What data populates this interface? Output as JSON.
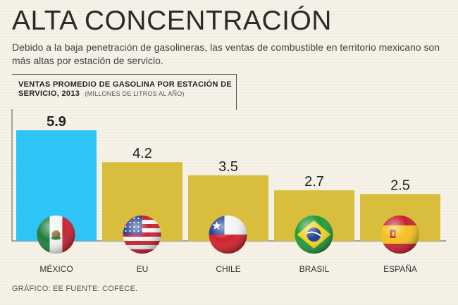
{
  "header": {
    "title": "ALTA CONCENTRACIÓN",
    "subtitle": "Debido a la baja penetración de gasolineras, las ventas de combustible en territorio mexicano son más altas por estación de servicio."
  },
  "chart_data": {
    "type": "bar",
    "title": "VENTAS PROMEDIO DE GASOLINA POR ESTACIÓN DE SERVICIO, 2013",
    "units": "(MILLONES DE LITROS AL AÑO)",
    "categories": [
      "MÉXICO",
      "EU",
      "CHILE",
      "BRASIL",
      "ESPAÑA"
    ],
    "values": [
      5.9,
      4.2,
      3.5,
      2.7,
      2.5
    ],
    "value_labels": [
      "5.9",
      "4.2",
      "3.5",
      "2.7",
      "2.5"
    ],
    "ylim": [
      0,
      5.9
    ],
    "grid": false,
    "colors": {
      "highlight": "#2ec4f5",
      "default": "#d9bd3d"
    },
    "highlight_index": 0,
    "flags": [
      "mexico-flag-icon",
      "usa-flag-icon",
      "chile-flag-icon",
      "brazil-flag-icon",
      "spain-flag-icon"
    ]
  },
  "footer": {
    "credit": "GRÁFICO: EE  FUENTE: COFECE."
  }
}
